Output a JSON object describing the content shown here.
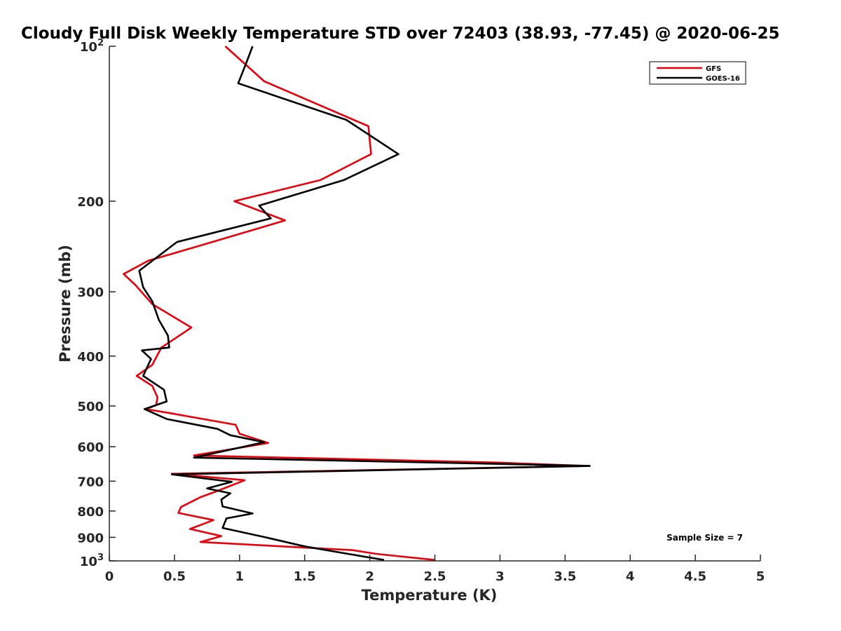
{
  "chart_data": {
    "type": "line",
    "title": "Cloudy Full Disk Weekly Temperature STD over 72403 (38.93, -77.45) @ 2020-06-25",
    "xlabel": "Temperature (K)",
    "ylabel": "Pressure (mb)",
    "xlim": [
      0,
      5
    ],
    "ylim": [
      100,
      1000
    ],
    "y_scale": "log",
    "y_reversed": true,
    "x_ticks": [
      {
        "value": 0,
        "label": "0"
      },
      {
        "value": 0.5,
        "label": "0.5"
      },
      {
        "value": 1,
        "label": "1"
      },
      {
        "value": 1.5,
        "label": "1.5"
      },
      {
        "value": 2,
        "label": "2"
      },
      {
        "value": 2.5,
        "label": "2.5"
      },
      {
        "value": 3,
        "label": "3"
      },
      {
        "value": 3.5,
        "label": "3.5"
      },
      {
        "value": 4,
        "label": "4"
      },
      {
        "value": 4.5,
        "label": "4.5"
      },
      {
        "value": 5,
        "label": "5"
      }
    ],
    "y_ticks": [
      {
        "value": 100,
        "base": "10",
        "exp": "2"
      },
      {
        "value": 200,
        "label": "200"
      },
      {
        "value": 300,
        "label": "300"
      },
      {
        "value": 400,
        "label": "400"
      },
      {
        "value": 500,
        "label": "500"
      },
      {
        "value": 600,
        "label": "600"
      },
      {
        "value": 700,
        "label": "700"
      },
      {
        "value": 800,
        "label": "800"
      },
      {
        "value": 900,
        "label": "900"
      },
      {
        "value": 1000,
        "base": "10",
        "exp": "3"
      }
    ],
    "grid": false,
    "legend_position": "top-right",
    "annotation": "Sample Size = 7",
    "series": [
      {
        "name": "GFS",
        "color": "#e8000b",
        "x": [
          0.89,
          1.19,
          1.99,
          2.01,
          1.62,
          0.96,
          1.35,
          0.65,
          0.3,
          0.11,
          0.2,
          0.33,
          0.63,
          0.4,
          0.33,
          0.21,
          0.33,
          0.37,
          0.36,
          0.28,
          0.48,
          0.97,
          1.0,
          1.22,
          0.65,
          2.96,
          3.68,
          0.48,
          1.04,
          0.82,
          0.7,
          0.55,
          0.53,
          0.8,
          0.62,
          0.86,
          0.7,
          1.87,
          2.05,
          2.5
        ],
        "y": [
          100,
          117,
          143,
          162,
          182,
          200,
          218,
          246,
          261,
          277,
          291,
          317,
          352,
          385,
          416,
          437,
          457,
          481,
          498,
          507,
          517,
          544,
          566,
          590,
          624,
          644,
          654,
          677,
          697,
          733,
          752,
          786,
          807,
          833,
          867,
          895,
          919,
          953,
          969,
          996
        ]
      },
      {
        "name": "GOES-16",
        "color": "#000000",
        "x": [
          1.1,
          1.05,
          0.99,
          1.82,
          2.22,
          1.8,
          1.15,
          1.24,
          0.52,
          0.23,
          0.26,
          0.33,
          0.38,
          0.45,
          0.46,
          0.25,
          0.32,
          0.26,
          0.42,
          0.44,
          0.27,
          0.44,
          0.83,
          0.93,
          1.19,
          0.65,
          3.0,
          3.69,
          0.48,
          0.94,
          0.75,
          0.93,
          0.86,
          0.87,
          1.1,
          0.9,
          0.87,
          1.2,
          1.5,
          1.79,
          2.11
        ],
        "y": [
          100,
          108,
          118,
          139,
          162,
          182,
          204,
          216,
          240,
          273,
          294,
          313,
          340,
          365,
          385,
          390,
          405,
          437,
          465,
          490,
          507,
          530,
          554,
          570,
          588,
          630,
          648,
          654,
          679,
          702,
          723,
          739,
          760,
          784,
          809,
          827,
          863,
          900,
          937,
          965,
          996
        ]
      }
    ]
  }
}
